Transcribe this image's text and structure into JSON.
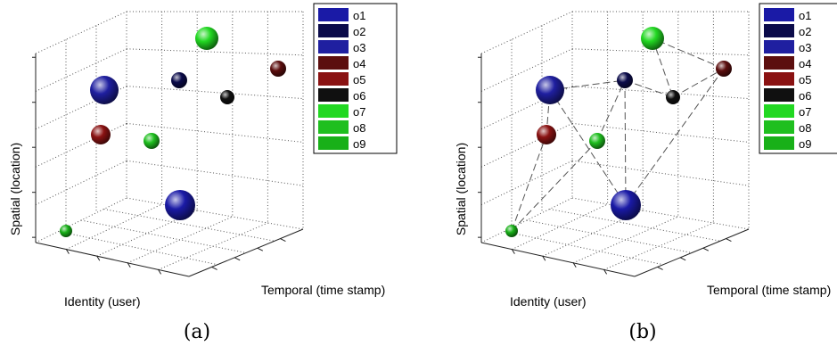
{
  "chart_data": [
    {
      "type": "scatter",
      "subtype": "3d-bubble",
      "panel_label": "(a)",
      "xlabel": "Identity (user)",
      "ylabel": "Temporal (time stamp)",
      "zlabel": "Spatial (location)",
      "grid": true,
      "legend_position": "top-right",
      "series": [
        {
          "name": "o1",
          "color": "#1a1aa6"
        },
        {
          "name": "o2",
          "color": "#0b0b4a"
        },
        {
          "name": "o3",
          "color": "#1f1fa0"
        },
        {
          "name": "o4",
          "color": "#5c0e0e"
        },
        {
          "name": "o5",
          "color": "#8a1212"
        },
        {
          "name": "o6",
          "color": "#101010"
        },
        {
          "name": "o7",
          "color": "#22d822"
        },
        {
          "name": "o8",
          "color": "#1fbf1f"
        },
        {
          "name": "o9",
          "color": "#18b018"
        }
      ],
      "connections": []
    },
    {
      "type": "scatter",
      "subtype": "3d-bubble",
      "panel_label": "(b)",
      "xlabel": "Identity (user)",
      "ylabel": "Temporal (time stamp)",
      "zlabel": "Spatial (location)",
      "grid": true,
      "legend_position": "top-right",
      "series": [
        {
          "name": "o1",
          "color": "#1a1aa6"
        },
        {
          "name": "o2",
          "color": "#0b0b4a"
        },
        {
          "name": "o3",
          "color": "#1f1fa0"
        },
        {
          "name": "o4",
          "color": "#5c0e0e"
        },
        {
          "name": "o5",
          "color": "#8a1212"
        },
        {
          "name": "o6",
          "color": "#101010"
        },
        {
          "name": "o7",
          "color": "#22d822"
        },
        {
          "name": "o8",
          "color": "#1fbf1f"
        },
        {
          "name": "o9",
          "color": "#18b018"
        }
      ],
      "connections": [
        [
          "o9",
          "o5"
        ],
        [
          "o5",
          "o3"
        ],
        [
          "o3",
          "o2"
        ],
        [
          "o2",
          "o6"
        ],
        [
          "o6",
          "o4"
        ],
        [
          "o4",
          "o7"
        ],
        [
          "o7",
          "o6"
        ],
        [
          "o2",
          "o1"
        ],
        [
          "o3",
          "o1"
        ],
        [
          "o1",
          "o4"
        ],
        [
          "o9",
          "o8"
        ],
        [
          "o8",
          "o2"
        ]
      ]
    }
  ]
}
